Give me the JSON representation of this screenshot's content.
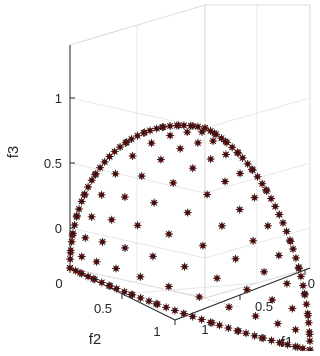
{
  "chart_data": {
    "type": "scatter",
    "projection": "3d",
    "title": "",
    "xlabel": "f1",
    "ylabel": "f2",
    "zlabel": "f3",
    "xlim": [
      0,
      1
    ],
    "ylim": [
      0,
      1
    ],
    "zlim": [
      0,
      1
    ],
    "grid": true,
    "legend": "none",
    "x_ticks": [
      "1",
      "0.5",
      "0"
    ],
    "y_ticks": [
      "0",
      "0.5",
      "1"
    ],
    "z_ticks": [
      "0",
      "0.5",
      "1"
    ],
    "marker": "asterisk",
    "marker_color": "#1a1a1a",
    "marker_fill": "#ee0000",
    "front_surface": "spherical Pareto front f1^2 + f2^2 + f3^2 = 1"
  }
}
